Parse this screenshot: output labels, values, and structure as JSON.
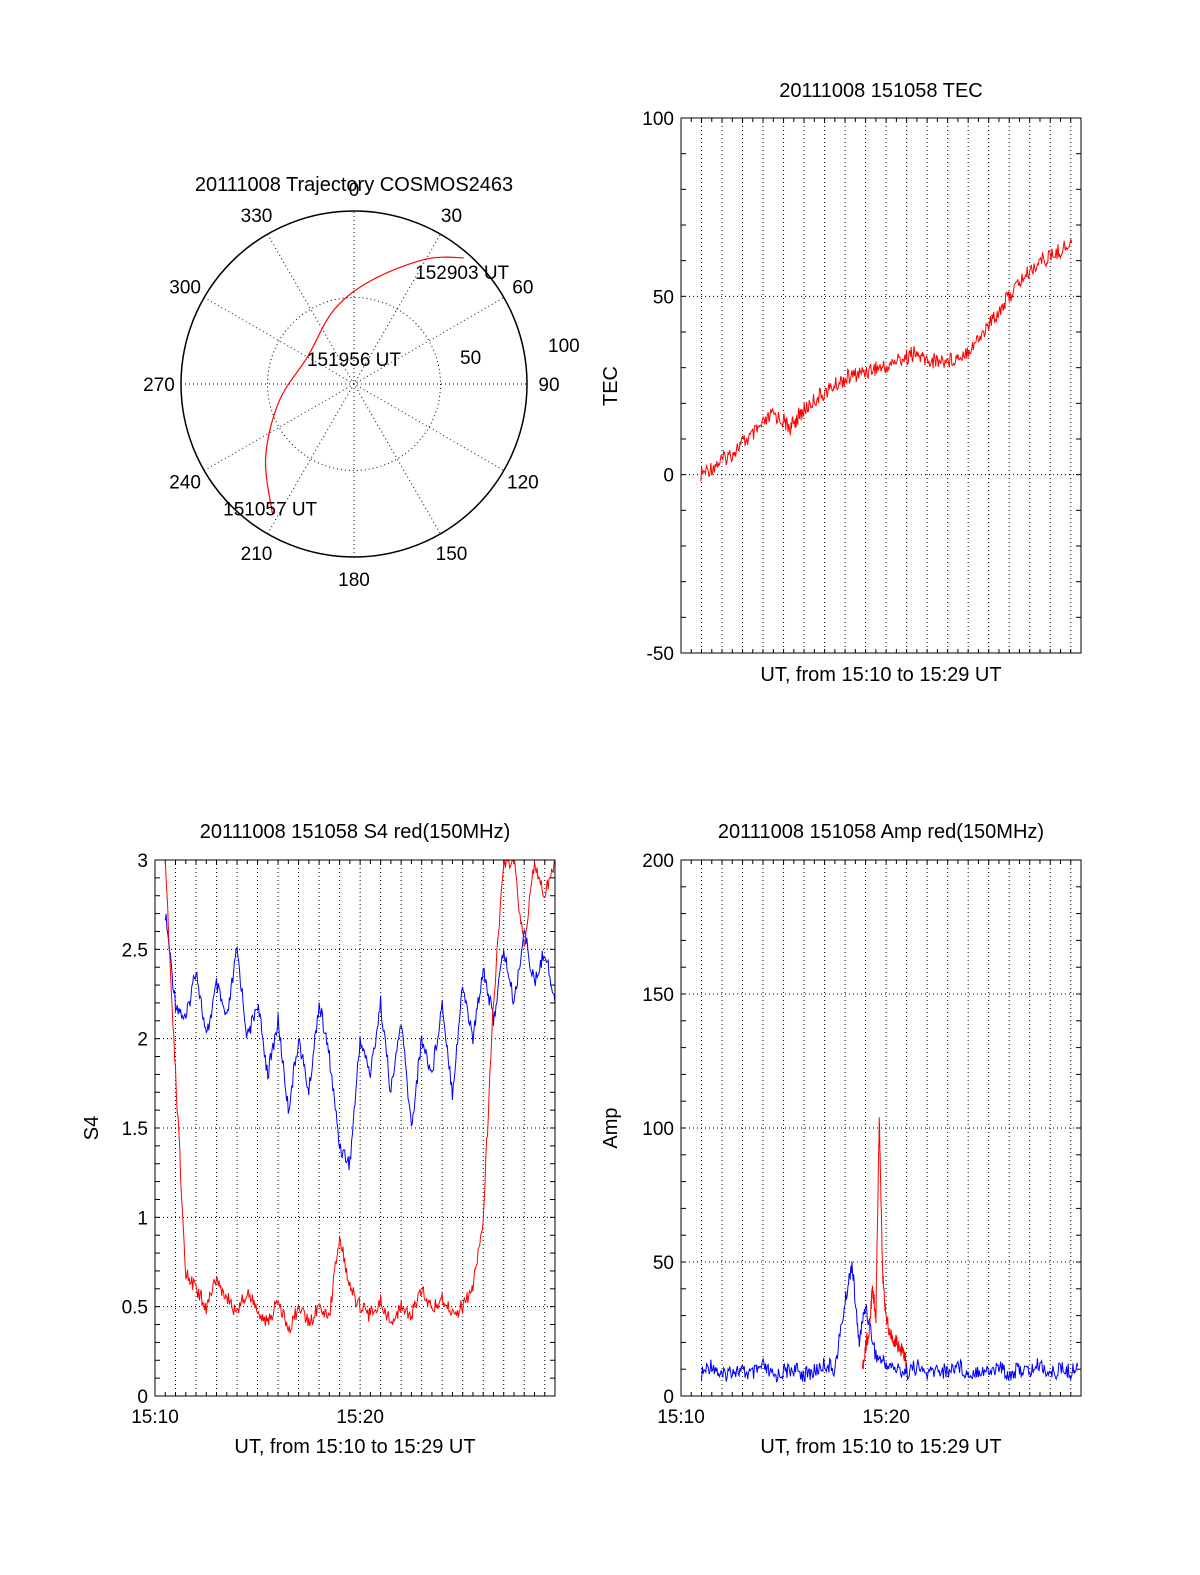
{
  "chart_data": [
    {
      "type": "polar",
      "title": "20111008 Trajectory COSMOS2463",
      "azimuth_labels": [
        "0",
        "30",
        "60",
        "90",
        "120",
        "150",
        "180",
        "210",
        "240",
        "270",
        "300",
        "330"
      ],
      "elevation_ring_labels": [
        "50",
        "100"
      ],
      "grid": true,
      "series": [
        {
          "color": "#ff0000",
          "points": [
            {
              "azimuth": 212,
              "elevation": 10
            },
            {
              "azimuth": 230,
              "elevation": 30
            },
            {
              "azimuth": 257,
              "elevation": 50
            },
            {
              "azimuth": 300,
              "elevation": 62
            },
            {
              "azimuth": 345,
              "elevation": 50
            },
            {
              "azimuth": 10,
              "elevation": 35
            },
            {
              "azimuth": 30,
              "elevation": 15
            },
            {
              "azimuth": 41,
              "elevation": 3
            }
          ]
        }
      ],
      "annotations": [
        {
          "text": "152903 UT",
          "azimuth": 44,
          "elevation": 9
        },
        {
          "text": "151956 UT",
          "azimuth": 0,
          "elevation": 77
        },
        {
          "text": "151057 UT",
          "azimuth": 214,
          "elevation": 12
        }
      ]
    },
    {
      "type": "line",
      "title": "20111008 151058 TEC",
      "xlabel": "UT, from 15:10 to 15:29 UT",
      "ylabel": "TEC",
      "ylim": [
        -50,
        100
      ],
      "yticks": [
        "-50",
        "0",
        "50",
        "100"
      ],
      "xlim": [
        "15:10:00",
        "15:29:30"
      ],
      "xticks": [],
      "grid": true,
      "series": [
        {
          "color": "#ff0000",
          "x": [
            "15:10:58",
            "15:11:30",
            "15:12:00",
            "15:12:30",
            "15:13:00",
            "15:13:30",
            "15:14:00",
            "15:14:30",
            "15:15:00",
            "15:15:20",
            "15:15:40",
            "15:16:00",
            "15:16:30",
            "15:17:00",
            "15:17:30",
            "15:18:00",
            "15:18:30",
            "15:19:00",
            "15:19:30",
            "15:20:00",
            "15:20:30",
            "15:21:00",
            "15:21:20",
            "15:21:40",
            "15:22:00",
            "15:22:30",
            "15:23:00",
            "15:23:30",
            "15:24:00",
            "15:24:30",
            "15:25:00",
            "15:25:30",
            "15:26:00",
            "15:26:30",
            "15:27:00",
            "15:27:30",
            "15:28:00",
            "15:28:30",
            "15:29:03"
          ],
          "y": [
            0,
            2,
            4,
            6,
            9,
            11,
            14,
            17,
            15,
            13,
            16,
            18,
            21,
            23,
            25,
            27,
            28,
            29,
            30,
            30,
            32,
            33,
            34,
            33,
            32,
            32,
            32,
            33,
            35,
            38,
            42,
            46,
            50,
            54,
            57,
            60,
            61,
            63,
            65
          ]
        }
      ]
    },
    {
      "type": "line",
      "title": "20111008 151058 S4 red(150MHz)",
      "xlabel": "UT, from 15:10 to 15:29 UT",
      "ylabel": "S4",
      "ylim": [
        0,
        3
      ],
      "yticks": [
        "0",
        "0.5",
        "1",
        "1.5",
        "2",
        "2.5",
        "3"
      ],
      "xlim": [
        "15:10:00",
        "15:29:30"
      ],
      "xticks": [
        "15:10",
        "15:20"
      ],
      "grid": true,
      "series": [
        {
          "color": "#0000ff",
          "x": [
            "15:10:30",
            "15:11:00",
            "15:11:30",
            "15:12:00",
            "15:12:30",
            "15:13:00",
            "15:13:30",
            "15:14:00",
            "15:14:30",
            "15:15:00",
            "15:15:30",
            "15:16:00",
            "15:16:30",
            "15:17:00",
            "15:17:30",
            "15:18:00",
            "15:18:30",
            "15:19:00",
            "15:19:30",
            "15:20:00",
            "15:20:30",
            "15:21:00",
            "15:21:30",
            "15:22:00",
            "15:22:30",
            "15:23:00",
            "15:23:30",
            "15:24:00",
            "15:24:30",
            "15:25:00",
            "15:25:30",
            "15:26:00",
            "15:26:30",
            "15:27:00",
            "15:27:30",
            "15:28:00",
            "15:28:30",
            "15:29:00",
            "15:29:30"
          ],
          "y": [
            2.7,
            2.2,
            2.1,
            2.4,
            2.0,
            2.3,
            2.1,
            2.5,
            2.0,
            2.2,
            1.8,
            2.1,
            1.6,
            2.0,
            1.7,
            2.2,
            1.9,
            1.4,
            1.3,
            2.0,
            1.8,
            2.2,
            1.7,
            2.1,
            1.5,
            2.0,
            1.8,
            2.2,
            1.7,
            2.3,
            2.0,
            2.4,
            2.1,
            2.5,
            2.2,
            2.6,
            2.3,
            2.5,
            2.2
          ]
        },
        {
          "color": "#ff0000",
          "x": [
            "15:10:30",
            "15:11:00",
            "15:11:30",
            "15:12:00",
            "15:12:30",
            "15:13:00",
            "15:13:30",
            "15:14:00",
            "15:14:30",
            "15:15:00",
            "15:15:30",
            "15:16:00",
            "15:16:30",
            "15:17:00",
            "15:17:30",
            "15:18:00",
            "15:18:30",
            "15:19:00",
            "15:19:30",
            "15:20:00",
            "15:20:30",
            "15:21:00",
            "15:21:30",
            "15:22:00",
            "15:22:30",
            "15:23:00",
            "15:23:30",
            "15:24:00",
            "15:24:30",
            "15:25:00",
            "15:25:30",
            "15:26:00",
            "15:26:30",
            "15:27:00",
            "15:27:30",
            "15:28:00",
            "15:28:30",
            "15:29:00",
            "15:29:30"
          ],
          "y": [
            3.0,
            1.8,
            0.7,
            0.6,
            0.5,
            0.65,
            0.55,
            0.45,
            0.6,
            0.5,
            0.4,
            0.55,
            0.35,
            0.5,
            0.4,
            0.5,
            0.45,
            0.9,
            0.6,
            0.5,
            0.45,
            0.55,
            0.4,
            0.5,
            0.45,
            0.6,
            0.5,
            0.55,
            0.45,
            0.5,
            0.6,
            1.0,
            2.2,
            3.0,
            3.0,
            2.5,
            3.0,
            2.8,
            3.0
          ]
        }
      ]
    },
    {
      "type": "line",
      "title": "20111008 151058 Amp red(150MHz)",
      "xlabel": "UT, from 15:10 to 15:29 UT",
      "ylabel": "Amp",
      "ylim": [
        0,
        200
      ],
      "yticks": [
        "0",
        "50",
        "100",
        "150",
        "200"
      ],
      "xlim": [
        "15:10:00",
        "15:29:30"
      ],
      "xticks": [
        "15:10",
        "15:20"
      ],
      "grid": true,
      "series": [
        {
          "color": "#0000ff",
          "x": [
            "15:11:00",
            "15:11:30",
            "15:12:00",
            "15:12:30",
            "15:13:00",
            "15:13:30",
            "15:14:00",
            "15:14:30",
            "15:15:00",
            "15:15:30",
            "15:16:00",
            "15:16:30",
            "15:17:00",
            "15:17:30",
            "15:18:00",
            "15:18:20",
            "15:18:40",
            "15:19:00",
            "15:19:30",
            "15:20:00",
            "15:20:30",
            "15:21:00",
            "15:21:30",
            "15:22:00",
            "15:22:30",
            "15:23:00",
            "15:23:30",
            "15:24:00",
            "15:24:30",
            "15:25:00",
            "15:25:30",
            "15:26:00",
            "15:26:30",
            "15:27:00",
            "15:27:30",
            "15:28:00",
            "15:28:30",
            "15:29:00",
            "15:29:20"
          ],
          "y": [
            8,
            12,
            7,
            10,
            9,
            8,
            11,
            7,
            9,
            10,
            8,
            9,
            12,
            10,
            35,
            50,
            20,
            34,
            15,
            12,
            10,
            9,
            11,
            8,
            10,
            9,
            12,
            8,
            10,
            9,
            11,
            8,
            10,
            9,
            12,
            8,
            10,
            9,
            11
          ]
        },
        {
          "color": "#ff0000",
          "x": [
            "15:18:50",
            "15:19:00",
            "15:19:10",
            "15:19:20",
            "15:19:30",
            "15:19:40",
            "15:19:50",
            "15:20:00",
            "15:20:10",
            "15:20:20",
            "15:20:30",
            "15:20:40",
            "15:20:50",
            "15:21:00"
          ],
          "y": [
            10,
            18,
            25,
            40,
            30,
            103,
            45,
            28,
            25,
            22,
            20,
            18,
            16,
            12
          ]
        }
      ]
    }
  ]
}
